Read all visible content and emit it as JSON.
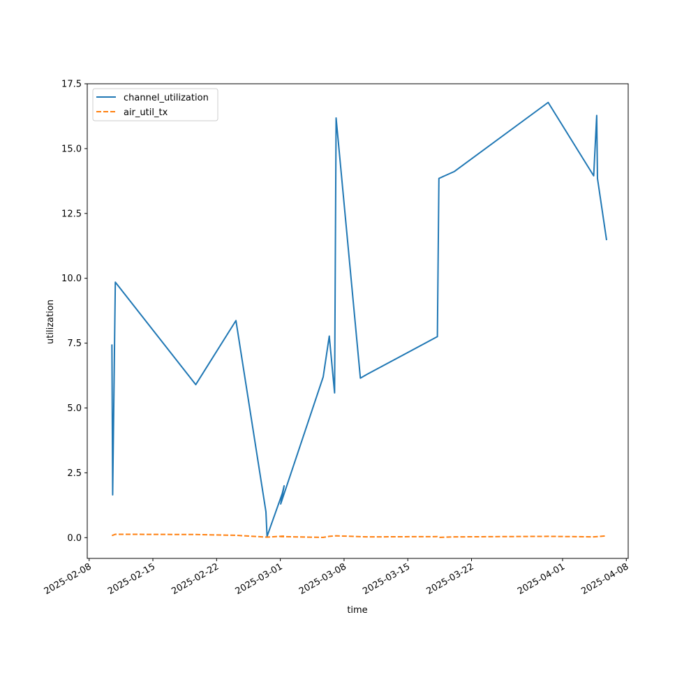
{
  "chart_data": {
    "type": "line",
    "title": "",
    "xlabel": "time",
    "ylabel": "utilization",
    "x_axis_type": "date",
    "xlim": [
      "2025-02-07T19:00",
      "2025-04-08T05:00"
    ],
    "ylim": [
      -0.8,
      17.5
    ],
    "yticks": [
      0.0,
      2.5,
      5.0,
      7.5,
      10.0,
      12.5,
      15.0,
      17.5
    ],
    "ytick_labels": [
      "0.0",
      "2.5",
      "5.0",
      "7.5",
      "10.0",
      "12.5",
      "15.0",
      "17.5"
    ],
    "xticks": [
      "2025-02-08",
      "2025-02-15",
      "2025-02-22",
      "2025-03-01",
      "2025-03-08",
      "2025-03-15",
      "2025-03-22",
      "2025-04-01",
      "2025-04-08"
    ],
    "xtick_labels": [
      "2025-02-08",
      "2025-02-15",
      "2025-02-22",
      "2025-03-01",
      "2025-03-08",
      "2025-03-15",
      "2025-03-22",
      "2025-04-01",
      "2025-04-08"
    ],
    "grid": false,
    "legend_position": "upper-left",
    "series": [
      {
        "name": "channel_utilization",
        "color": "#1f77b4",
        "style": "solid",
        "points": [
          [
            "2025-02-10T12:00",
            7.45
          ],
          [
            "2025-02-10T14:00",
            1.65
          ],
          [
            "2025-02-10T21:00",
            9.85
          ],
          [
            "2025-02-19T17:00",
            5.9
          ],
          [
            "2025-02-24T03:00",
            8.37
          ],
          [
            "2025-02-27T10:00",
            1.0
          ],
          [
            "2025-02-27T13:00",
            0.05
          ],
          [
            "2025-02-29T05:00",
            1.7
          ],
          [
            "2025-02-29T10:00",
            2.0
          ],
          [
            "2025-03-01T01:00",
            1.3
          ],
          [
            "2025-03-05T17:00",
            6.2
          ],
          [
            "2025-03-06T09:00",
            7.77
          ],
          [
            "2025-03-06T23:00",
            5.58
          ],
          [
            "2025-03-07T03:00",
            16.18
          ],
          [
            "2025-03-09T19:00",
            6.15
          ],
          [
            "2025-03-10T13:00",
            6.3
          ],
          [
            "2025-03-18T06:00",
            7.75
          ],
          [
            "2025-03-18T10:00",
            13.85
          ],
          [
            "2025-03-20T03:00",
            14.12
          ],
          [
            "2025-03-30T10:00",
            16.78
          ],
          [
            "2025-04-04T10:00",
            13.95
          ],
          [
            "2025-04-04T18:00",
            16.28
          ],
          [
            "2025-04-04T20:00",
            13.85
          ],
          [
            "2025-04-05T20:00",
            11.47
          ]
        ]
      },
      {
        "name": "air_util_tx",
        "color": "#ff7f0e",
        "style": "dashed",
        "points": [
          [
            "2025-02-10T12:00",
            0.08
          ],
          [
            "2025-02-10T21:00",
            0.13
          ],
          [
            "2025-02-19T17:00",
            0.12
          ],
          [
            "2025-02-24T03:00",
            0.09
          ],
          [
            "2025-02-27T13:00",
            0.02
          ],
          [
            "2025-02-29T10:00",
            0.06
          ],
          [
            "2025-03-01T01:00",
            0.04
          ],
          [
            "2025-03-05T17:00",
            0.01
          ],
          [
            "2025-03-06T09:00",
            0.05
          ],
          [
            "2025-03-07T03:00",
            0.07
          ],
          [
            "2025-03-10T13:00",
            0.03
          ],
          [
            "2025-03-18T06:00",
            0.04
          ],
          [
            "2025-03-18T10:00",
            0.01
          ],
          [
            "2025-03-20T03:00",
            0.03
          ],
          [
            "2025-03-30T10:00",
            0.05
          ],
          [
            "2025-04-04T10:00",
            0.03
          ],
          [
            "2025-04-04T20:00",
            0.04
          ],
          [
            "2025-04-05T20:00",
            0.07
          ]
        ]
      }
    ]
  }
}
